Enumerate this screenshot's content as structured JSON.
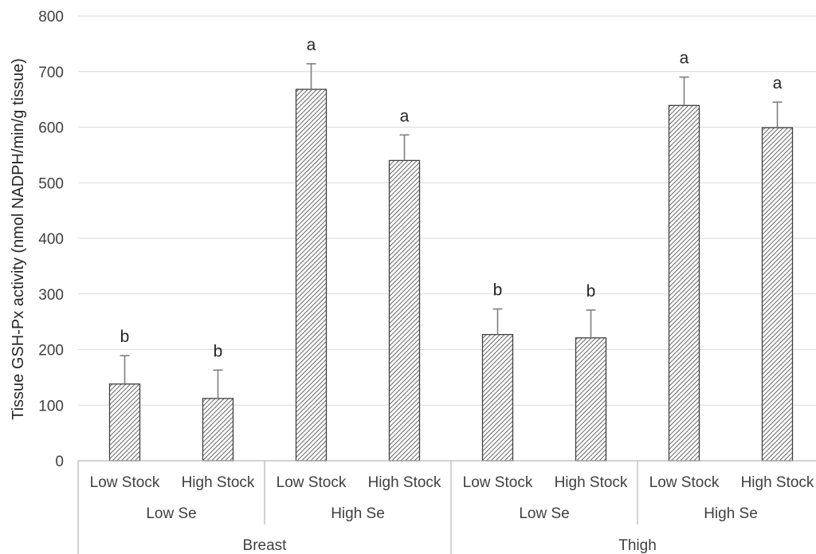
{
  "chart_data": {
    "type": "bar",
    "ylabel": "Tissue GSH-Px activity (nmol NADPH/min/g tissue)",
    "xlabel": "",
    "ylim": [
      0,
      800
    ],
    "yticks": [
      0,
      100,
      200,
      300,
      400,
      500,
      600,
      700,
      800
    ],
    "grid": true,
    "bar_fill": "diagonal-hatch",
    "colors": {
      "bar_stroke": "#404040",
      "hatch": "#404040",
      "error_bar": "#7f7f7f",
      "grid": "#d9d9d9",
      "text": "#404040"
    },
    "categories": [
      "Low Stock",
      "High Stock",
      "Low Stock",
      "High Stock",
      "Low Stock",
      "High Stock",
      "Low Stock",
      "High Stock"
    ],
    "values": [
      138,
      112,
      668,
      540,
      227,
      221,
      639,
      599
    ],
    "errors": [
      51,
      51,
      46,
      46,
      46,
      50,
      51,
      46
    ],
    "significance_letters": [
      "b",
      "b",
      "a",
      "a",
      "b",
      "b",
      "a",
      "a"
    ],
    "groups_level2": [
      {
        "label": "Low Se",
        "count": 2
      },
      {
        "label": "High Se",
        "count": 2
      },
      {
        "label": "Low Se",
        "count": 2
      },
      {
        "label": "High Se",
        "count": 2
      }
    ],
    "groups_level1": [
      {
        "label": "Breast",
        "count": 4
      },
      {
        "label": "Thigh",
        "count": 4
      }
    ]
  }
}
